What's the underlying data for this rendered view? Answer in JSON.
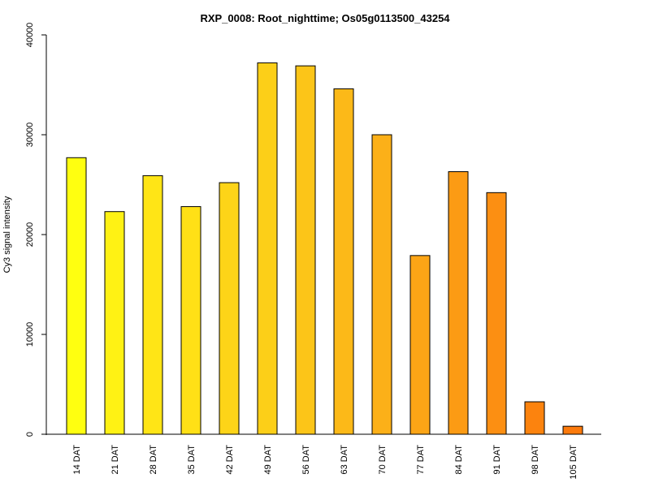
{
  "chart_data": {
    "type": "bar",
    "title": "RXP_0008: Root_nighttime; Os05g0113500_43254",
    "xlabel": "",
    "ylabel": "Cy3 signal intensity",
    "ylim": [
      0,
      40000
    ],
    "yticks": [
      0,
      10000,
      20000,
      30000,
      40000
    ],
    "grid": false,
    "legend": "none",
    "categories": [
      "14 DAT",
      "21 DAT",
      "28 DAT",
      "35 DAT",
      "42 DAT",
      "49 DAT",
      "56 DAT",
      "63 DAT",
      "70 DAT",
      "77 DAT",
      "84 DAT",
      "91 DAT",
      "98 DAT",
      "105 DAT"
    ],
    "values": [
      27700,
      22300,
      25900,
      22800,
      25200,
      37200,
      36900,
      34600,
      30000,
      17900,
      26300,
      24200,
      3250,
      800
    ],
    "colors": [
      "#ffff10",
      "#fff214",
      "#ffe516",
      "#ffe016",
      "#fdd418",
      "#fccf18",
      "#fcc518",
      "#fcb918",
      "#fcb018",
      "#fca516",
      "#fc9b14",
      "#fc8f12",
      "#fc830e",
      "#fc7a0c"
    ]
  }
}
